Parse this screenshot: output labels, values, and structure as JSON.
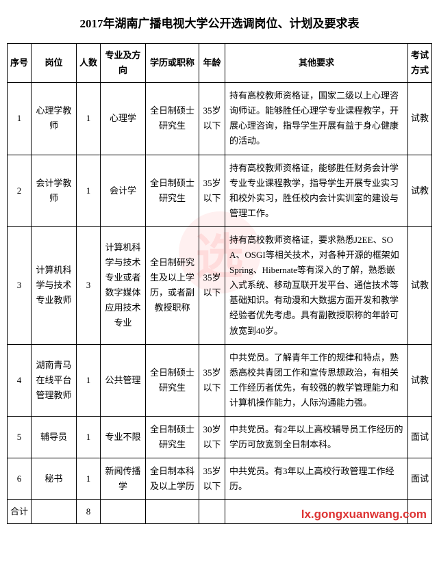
{
  "title": "2017年湖南广播电视大学公开选调岗位、计划及要求表",
  "watermark_url": "lx.gongxuanwang.com",
  "headers": {
    "seq": "序号",
    "position": "岗位",
    "count": "人数",
    "major": "专业及方向",
    "education": "学历或职称",
    "age": "年龄",
    "requirements": "其他要求",
    "exam": "考试方式"
  },
  "rows": [
    {
      "seq": "1",
      "position": "心理学教师",
      "count": "1",
      "major": "心理学",
      "education": "全日制硕士研究生",
      "age": "35岁以下",
      "requirements": "持有高校教师资格证，国家二级以上心理咨询师证。能够胜任心理学专业课程教学，开展心理咨询，指导学生开展有益于身心健康的活动。",
      "exam": "试教"
    },
    {
      "seq": "2",
      "position": "会计学教师",
      "count": "1",
      "major": "会计学",
      "education": "全日制硕士研究生",
      "age": "35岁以下",
      "requirements": "持有高校教师资格证，能够胜任财务会计学专业专业课程教学，指导学生开展专业实习和校外实习，胜任校内会计实训室的建设与管理工作。",
      "exam": "试教"
    },
    {
      "seq": "3",
      "position": "计算机科学与技术专业教师",
      "count": "3",
      "major": "计算机科学与技术专业或者数字媒体应用技术专业",
      "education": "全日制研究生及以上学历，或者副教授职称",
      "age": "35岁以下",
      "requirements": "持有高校教师资格证，要求熟悉J2EE、SOA、OSGI等相关技术，对各种开源的框架如Spring、Hibernate等有深入的了解，熟悉嵌入式系统、移动互联开发平台、通信技术等基础知识。有动漫和大数据方面开发和教学经验者优先考虑。具有副教授职称的年龄可放宽到40岁。",
      "exam": "试教"
    },
    {
      "seq": "4",
      "position": "湖南青马在线平台管理教师",
      "count": "1",
      "major": "公共管理",
      "education": "全日制硕士研究生",
      "age": "35岁以下",
      "requirements": "中共党员。了解青年工作的规律和特点，熟悉高校共青团工作和宣传思想政治，有相关工作经历者优先，有较强的教学管理能力和计算机操作能力，人际沟通能力强。",
      "exam": "试教"
    },
    {
      "seq": "5",
      "position": "辅导员",
      "count": "1",
      "major": "专业不限",
      "education": "全日制硕士研究生",
      "age": "30岁以下",
      "requirements": "中共党员。有2年以上高校辅导员工作经历的学历可放宽到全日制本科。",
      "exam": "面试"
    },
    {
      "seq": "6",
      "position": "秘书",
      "count": "1",
      "major": "新闻传播学",
      "education": "全日制本科及以上学历",
      "age": "35岁以下",
      "requirements": "中共党员。有3年以上高校行政管理工作经历。",
      "exam": "面试"
    }
  ],
  "total": {
    "label": "合计",
    "count": "8"
  }
}
